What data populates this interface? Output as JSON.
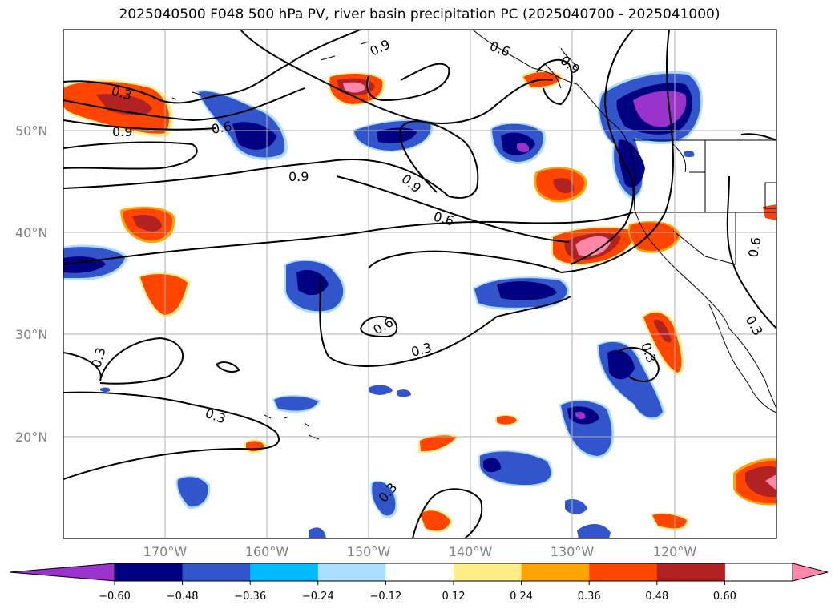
{
  "title": "2025040500 F048 500 hPa PV, river basin precipitation PC (2025040700 - 2025041000)",
  "map": {
    "lat_labels": [
      "50°N",
      "40°N",
      "30°N",
      "20°N"
    ],
    "lon_labels": [
      "170°W",
      "160°W",
      "150°W",
      "140°W",
      "130°W",
      "120°W"
    ],
    "contour_labels": [
      "0.3",
      "0.9",
      "0.6",
      "0.9",
      "0.9",
      "0.6",
      "0.9",
      "0.9",
      "0.6",
      "0.6",
      "0.3",
      "0.3",
      "0.3",
      "0.3",
      "0.3",
      "0.6",
      "0.3"
    ],
    "colors": {
      "neg_extend": "#9933cc",
      "neg_060": "#000080",
      "neg_048": "#3355cc",
      "neg_036": "#00bbff",
      "neg_024": "#aaddff",
      "zero": "#ffffff",
      "pos_012": "#ffee88",
      "pos_024": "#ffa500",
      "pos_036": "#ff4500",
      "pos_048": "#b22222",
      "pos_060": "#ff88aa"
    }
  },
  "colorbar": {
    "ticks": [
      "−0.60",
      "−0.48",
      "−0.36",
      "−0.24",
      "−0.12",
      "0.12",
      "0.24",
      "0.36",
      "0.48",
      "0.60"
    ],
    "segment_colors": [
      "#9933cc",
      "#000080",
      "#3355cc",
      "#00bbff",
      "#aaddff",
      "#ffffff",
      "#ffee88",
      "#ffa500",
      "#ff4500",
      "#b22222",
      "#ff88aa"
    ]
  }
}
